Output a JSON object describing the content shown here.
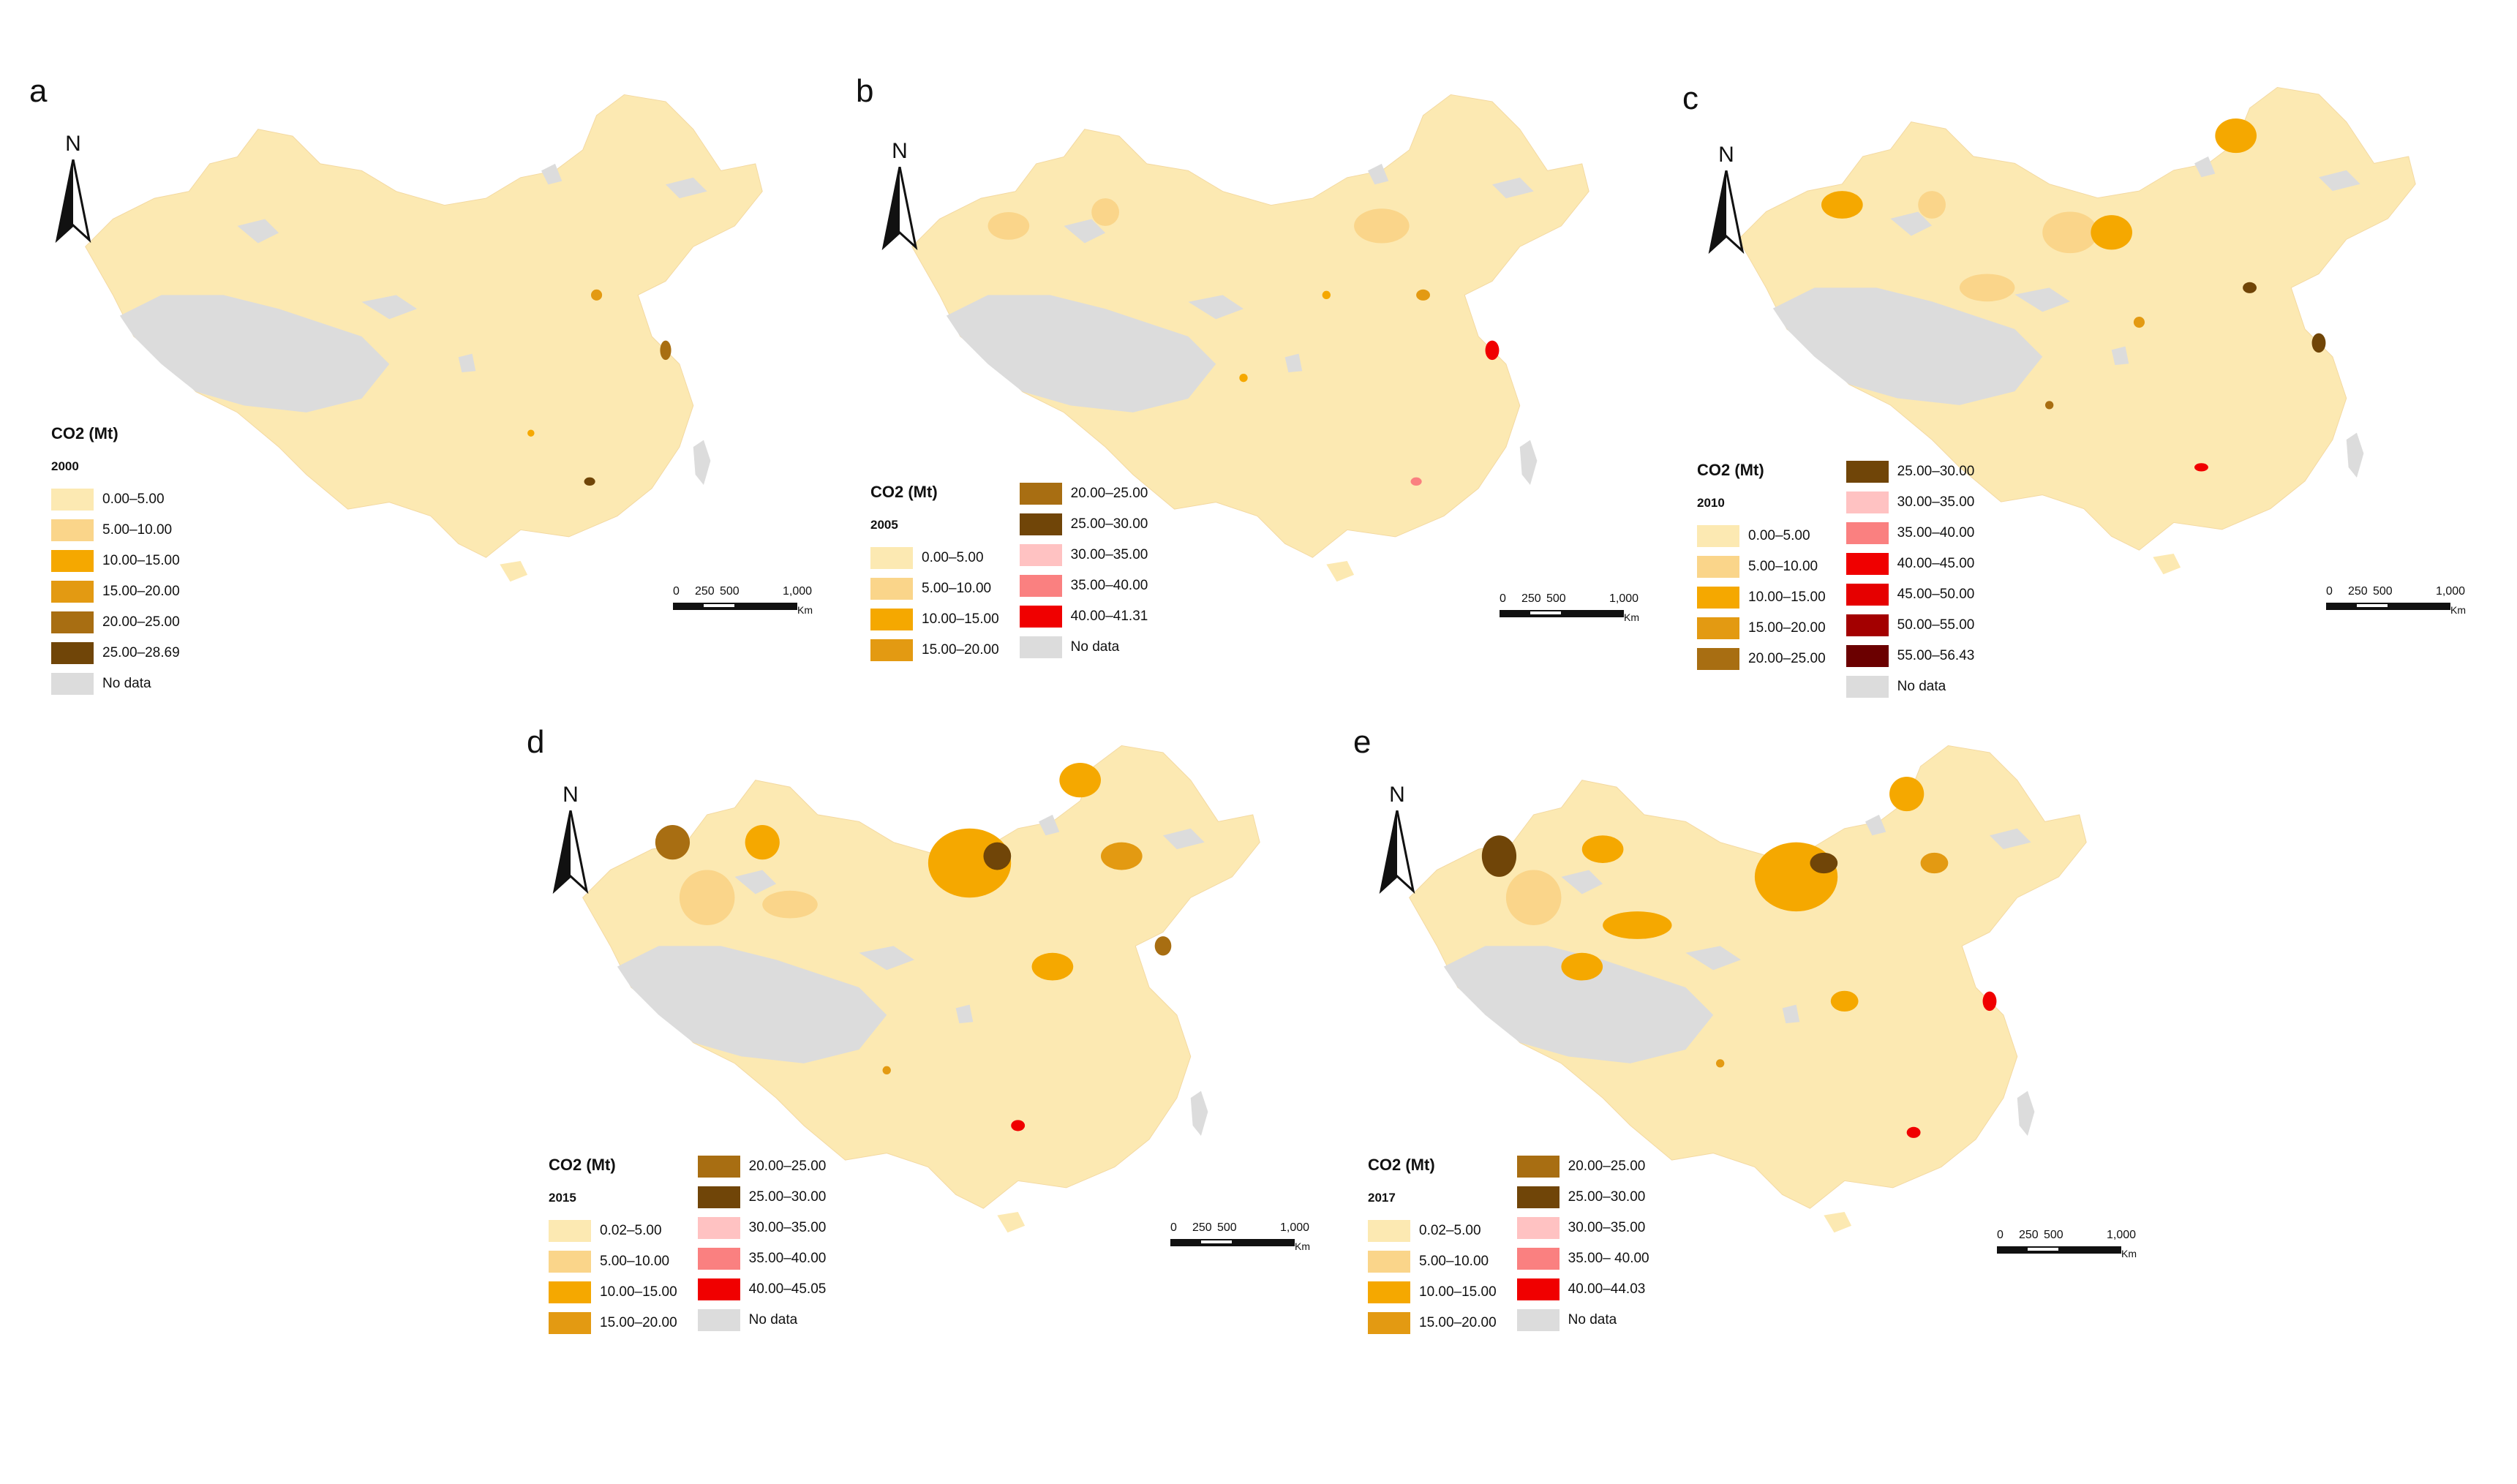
{
  "figure": {
    "unit_label": "Km",
    "scale_ticks": [
      "0",
      "250",
      "500",
      "1,000"
    ],
    "north_label": "N",
    "colors": {
      "land": "#FCE9B2",
      "no_data": "#DCDCDC",
      "c_0_5": "#FCE9B2",
      "c_5_10": "#FAD58A",
      "c_10_15": "#F5A800",
      "c_15_20": "#E39A12",
      "c_20_25": "#A86E12",
      "c_25_30": "#704508",
      "c_30_35": "#FFC2C2",
      "c_35_40": "#FA8080",
      "c_40_45": "#F00000",
      "c_45_50": "#E60000",
      "c_50_55": "#A30000",
      "c_55_60": "#6B0000"
    }
  },
  "panels": [
    {
      "letter": "a",
      "legend_title": "CO2 (Mt)",
      "year": "2000",
      "left_items": [
        {
          "label": "0.00–5.00",
          "color": "#FCE9B2"
        },
        {
          "label": "5.00–10.00",
          "color": "#FAD58A"
        },
        {
          "label": "10.00–15.00",
          "color": "#F5A800"
        },
        {
          "label": "15.00–20.00",
          "color": "#E39A12"
        },
        {
          "label": "20.00–25.00",
          "color": "#A86E12"
        },
        {
          "label": "25.00–28.69",
          "color": "#704508"
        },
        {
          "label": "No data",
          "color": "#DCDCDC"
        }
      ],
      "right_items": []
    },
    {
      "letter": "b",
      "legend_title": "CO2 (Mt)",
      "year": "2005",
      "left_items": [
        {
          "label": "0.00–5.00",
          "color": "#FCE9B2"
        },
        {
          "label": "5.00–10.00",
          "color": "#FAD58A"
        },
        {
          "label": "10.00–15.00",
          "color": "#F5A800"
        },
        {
          "label": "15.00–20.00",
          "color": "#E39A12"
        }
      ],
      "right_items": [
        {
          "label": "20.00–25.00",
          "color": "#A86E12"
        },
        {
          "label": "25.00–30.00",
          "color": "#704508"
        },
        {
          "label": "30.00–35.00",
          "color": "#FFC2C2"
        },
        {
          "label": "35.00–40.00",
          "color": "#FA8080"
        },
        {
          "label": "40.00–41.31",
          "color": "#F00000"
        },
        {
          "label": "No data",
          "color": "#DCDCDC"
        }
      ]
    },
    {
      "letter": "c",
      "legend_title": "CO2 (Mt)",
      "year": "2010",
      "left_items": [
        {
          "label": "0.00–5.00",
          "color": "#FCE9B2"
        },
        {
          "label": "5.00–10.00",
          "color": "#FAD58A"
        },
        {
          "label": "10.00–15.00",
          "color": "#F5A800"
        },
        {
          "label": "15.00–20.00",
          "color": "#E39A12"
        },
        {
          "label": "20.00–25.00",
          "color": "#A86E12"
        }
      ],
      "right_items": [
        {
          "label": "25.00–30.00",
          "color": "#704508"
        },
        {
          "label": "30.00–35.00",
          "color": "#FFC2C2"
        },
        {
          "label": "35.00–40.00",
          "color": "#FA8080"
        },
        {
          "label": "40.00–45.00",
          "color": "#F00000"
        },
        {
          "label": "45.00–50.00",
          "color": "#E60000"
        },
        {
          "label": "50.00–55.00",
          "color": "#A30000"
        },
        {
          "label": "55.00–56.43",
          "color": "#6B0000"
        },
        {
          "label": "No data",
          "color": "#DCDCDC"
        }
      ]
    },
    {
      "letter": "d",
      "legend_title": "CO2 (Mt)",
      "year": "2015",
      "left_items": [
        {
          "label": "0.02–5.00",
          "color": "#FCE9B2"
        },
        {
          "label": "5.00–10.00",
          "color": "#FAD58A"
        },
        {
          "label": "10.00–15.00",
          "color": "#F5A800"
        },
        {
          "label": "15.00–20.00",
          "color": "#E39A12"
        }
      ],
      "right_items": [
        {
          "label": "20.00–25.00",
          "color": "#A86E12"
        },
        {
          "label": "25.00–30.00",
          "color": "#704508"
        },
        {
          "label": "30.00–35.00",
          "color": "#FFC2C2"
        },
        {
          "label": "35.00–40.00",
          "color": "#FA8080"
        },
        {
          "label": "40.00–45.05",
          "color": "#F00000"
        },
        {
          "label": "No data",
          "color": "#DCDCDC"
        }
      ]
    },
    {
      "letter": "e",
      "legend_title": "CO2 (Mt)",
      "year": "2017",
      "left_items": [
        {
          "label": "0.02–5.00",
          "color": "#FCE9B2"
        },
        {
          "label": "5.00–10.00",
          "color": "#FAD58A"
        },
        {
          "label": "10.00–15.00",
          "color": "#F5A800"
        },
        {
          "label": "15.00–20.00",
          "color": "#E39A12"
        }
      ],
      "right_items": [
        {
          "label": "20.00–25.00",
          "color": "#A86E12"
        },
        {
          "label": "25.00–30.00",
          "color": "#704508"
        },
        {
          "label": "30.00–35.00",
          "color": "#FFC2C2"
        },
        {
          "label": "35.00– 40.00",
          "color": "#FA8080"
        },
        {
          "label": "40.00–44.03",
          "color": "#F00000"
        },
        {
          "label": "No data",
          "color": "#DCDCDC"
        }
      ]
    }
  ]
}
